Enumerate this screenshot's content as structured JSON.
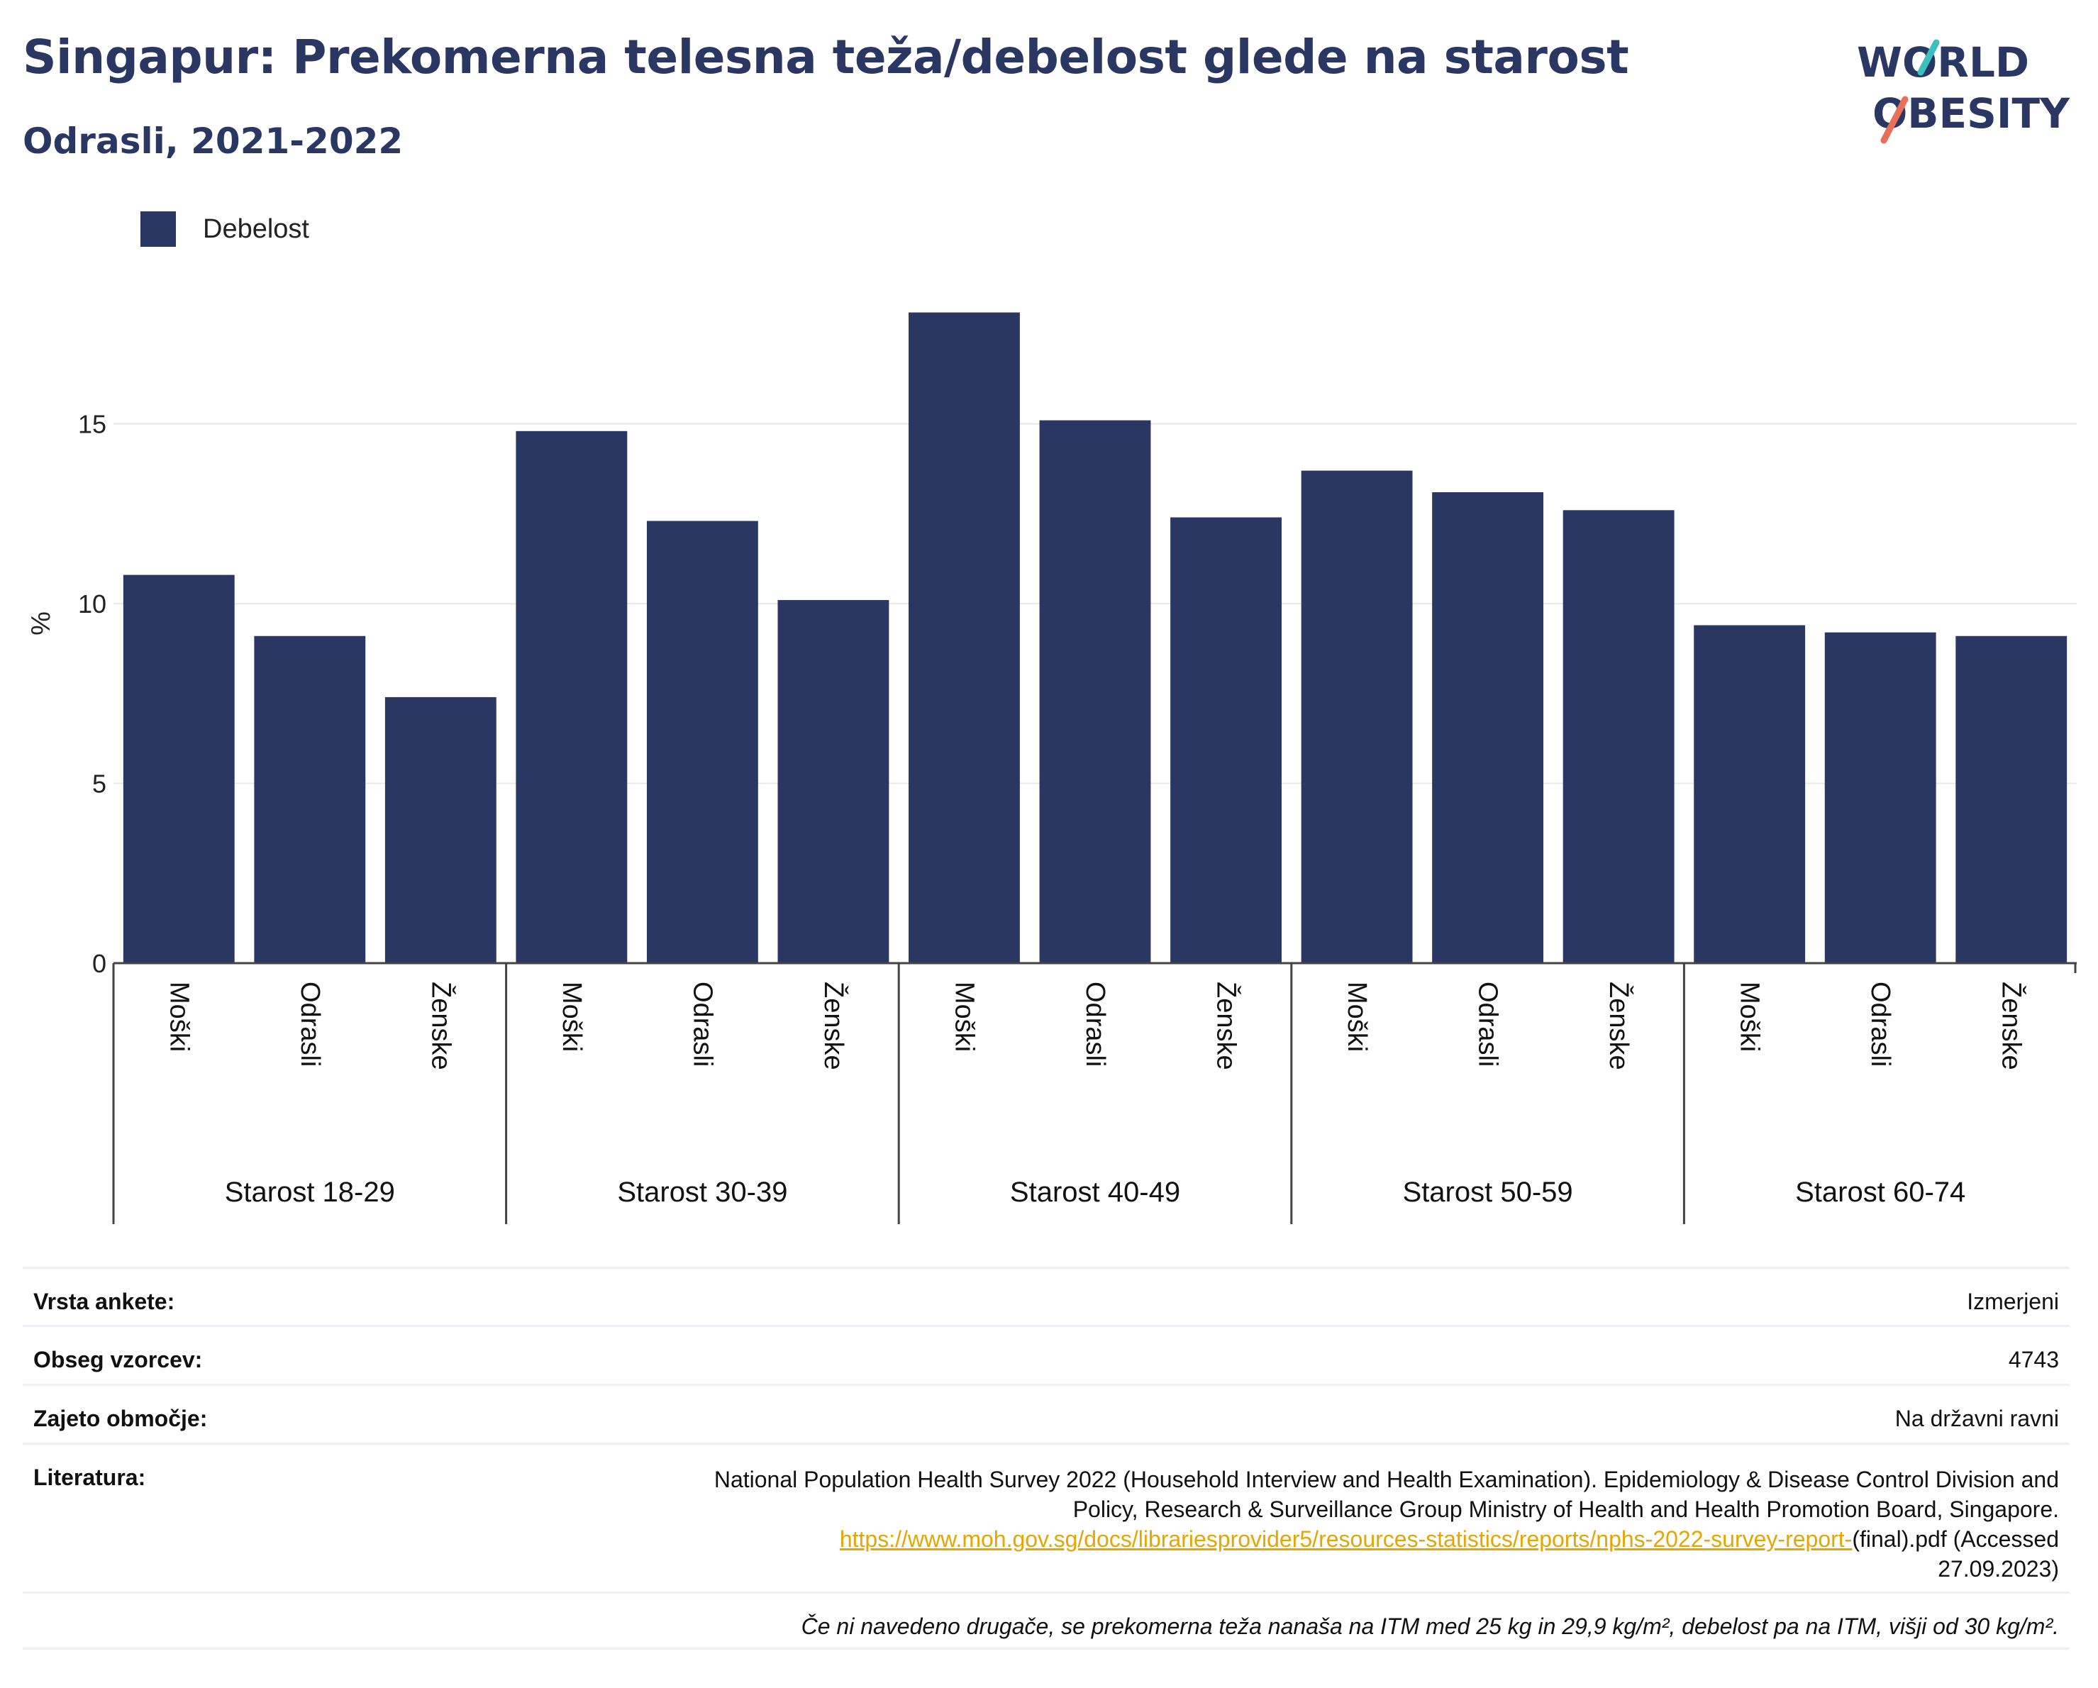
{
  "title": "Singapur: Prekomerna telesna teža/debelost glede na starost",
  "subtitle": "Odrasli, 2021-2022",
  "logo": {
    "line1": "WORLD",
    "line2": "OBESITY"
  },
  "colors": {
    "bar": "#2b3763",
    "title": "#2b3763",
    "link": "#e7a500",
    "logo_teal": "#3bbfbf",
    "logo_coral": "#e8705a"
  },
  "legend": {
    "label": "Debelost"
  },
  "chart_data": {
    "type": "bar",
    "ylabel": "%",
    "ylim": [
      0,
      19
    ],
    "yticks": [
      0,
      5,
      10,
      15
    ],
    "grid": true,
    "legend_position": "top-left",
    "groups": [
      {
        "label": "Starost 18-29",
        "categories": [
          "Moški",
          "Odrasli",
          "Ženske"
        ],
        "values": [
          10.8,
          9.1,
          7.4
        ]
      },
      {
        "label": "Starost 30-39",
        "categories": [
          "Moški",
          "Odrasli",
          "Ženske"
        ],
        "values": [
          14.8,
          12.3,
          10.1
        ]
      },
      {
        "label": "Starost 40-49",
        "categories": [
          "Moški",
          "Odrasli",
          "Ženske"
        ],
        "values": [
          18.1,
          15.1,
          12.4
        ]
      },
      {
        "label": "Starost 50-59",
        "categories": [
          "Moški",
          "Odrasli",
          "Ženske"
        ],
        "values": [
          13.7,
          13.1,
          12.6
        ]
      },
      {
        "label": "Starost 60-74",
        "categories": [
          "Moški",
          "Odrasli",
          "Ženske"
        ],
        "values": [
          9.4,
          9.2,
          9.1
        ]
      }
    ],
    "series": [
      {
        "name": "Debelost"
      }
    ]
  },
  "info": {
    "survey_type": {
      "label": "Vrsta ankete:",
      "value": "Izmerjeni"
    },
    "sample_size": {
      "label": "Obseg vzorcev:",
      "value": "4743"
    },
    "coverage": {
      "label": "Zajeto območje:",
      "value": "Na državni ravni"
    },
    "literature": {
      "label": "Literatura:",
      "text_line1": "National Population Health Survey 2022 (Household Interview and Health Examination). Epidemiology & Disease Control Division and",
      "text_line2": "Policy, Research & Surveillance Group Ministry of Health and Health Promotion Board, Singapore.",
      "link": "https://www.moh.gov.sg/docs/librariesprovider5/resources-statistics/reports/nphs-2022-survey-report-",
      "text_after_link": "(final).pdf (Accessed",
      "text_line4": "27.09.2023)"
    },
    "note": "Če ni navedeno drugače, se prekomerna teža nanaša na ITM med 25 kg in 29,9 kg/m², debelost pa na ITM, višji od 30 kg/m²."
  }
}
